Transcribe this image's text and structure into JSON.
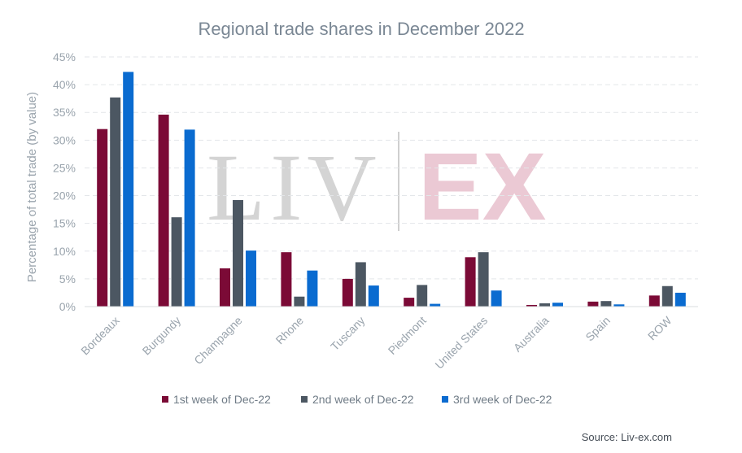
{
  "chart_data": {
    "type": "bar",
    "title": "Regional trade shares in December 2022",
    "ylabel": "Percentage of total trade (by value)",
    "xlabel": "",
    "ylim": [
      0,
      45
    ],
    "yticks": [
      "0%",
      "5%",
      "10%",
      "15%",
      "20%",
      "25%",
      "30%",
      "35%",
      "40%",
      "45%"
    ],
    "categories": [
      "Bordeaux",
      "Burgundy",
      "Champagne",
      "Rhone",
      "Tuscany",
      "Piedmont",
      "United States",
      "Australia",
      "Spain",
      "ROW"
    ],
    "series": [
      {
        "name": "1st week of Dec-22",
        "color": "#7b0a36",
        "values": [
          32,
          34.6,
          6.9,
          9.8,
          5.0,
          1.6,
          8.9,
          0.3,
          0.9,
          2.0
        ]
      },
      {
        "name": "2nd week of Dec-22",
        "color": "#4c5762",
        "values": [
          37.7,
          16.1,
          19.2,
          1.8,
          8.0,
          3.9,
          9.8,
          0.6,
          1.0,
          3.7
        ]
      },
      {
        "name": "3rd week of Dec-22",
        "color": "#0a6bd0",
        "values": [
          42.3,
          31.9,
          10.1,
          6.5,
          3.8,
          0.5,
          2.9,
          0.7,
          0.4,
          2.5
        ]
      }
    ],
    "grid": true,
    "legend": "bottom"
  },
  "watermark": {
    "left": "LIV",
    "right": "EX"
  },
  "source": "Source: Liv-ex.com"
}
